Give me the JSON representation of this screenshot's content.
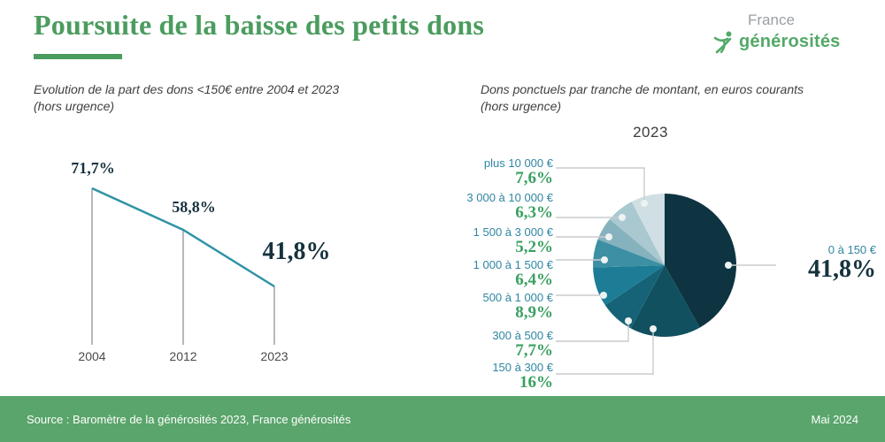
{
  "header": {
    "title": "Poursuite de la baisse des petits dons",
    "logo": {
      "line1": "France",
      "line2": "générosités"
    }
  },
  "left_chart": {
    "subtitle_line1": "Evolution de la part des dons <150€ entre 2004 et 2023",
    "subtitle_line2": "(hors urgence)"
  },
  "right_chart": {
    "subtitle_line1": "Dons ponctuels par tranche de montant, en euros courants",
    "subtitle_line2": "(hors urgence)",
    "year_title": "2023"
  },
  "footer": {
    "source": "Source : Baromètre de la générosités 2023, France générosités",
    "date": "Mai 2024"
  },
  "colors": {
    "accent_green": "#4b9c5f",
    "footer_green": "#5aa56b",
    "logo_green": "#53a968",
    "range_teal": "#2f86a3",
    "pct_green": "#3aa061",
    "dark_navy": "#16323e",
    "line_teal": "#2e93a6",
    "leader_gray": "#c9ccce"
  },
  "chart_data": [
    {
      "type": "line",
      "title": "Evolution de la part des dons <150€ entre 2004 et 2023 (hors urgence)",
      "x": [
        "2004",
        "2012",
        "2023"
      ],
      "values": [
        71.7,
        58.8,
        41.8
      ],
      "point_labels": [
        "71,7%",
        "58,8%",
        "41,8%"
      ],
      "ylim": [
        0,
        100
      ],
      "line_color": "#2e93a6",
      "dropline_color": "#717171",
      "grid": false,
      "legend": "none"
    },
    {
      "type": "pie",
      "title": "Dons ponctuels par tranche de montant, en euros courants (hors urgence)",
      "year": "2023",
      "start_angle_deg": 0,
      "direction": "clockwise",
      "slices": [
        {
          "label": "0 à 150 €",
          "pct_label": "41,8%",
          "value": 41.8,
          "color": "#0d3440"
        },
        {
          "label": "150 à 300 €",
          "pct_label": "16%",
          "value": 16.0,
          "color": "#11505f"
        },
        {
          "label": "300 à 500 €",
          "pct_label": "7,7%",
          "value": 7.7,
          "color": "#166377"
        },
        {
          "label": "500 à 1 000 €",
          "pct_label": "8,9%",
          "value": 8.9,
          "color": "#1d7d96"
        },
        {
          "label": "1 000 à 1 500 €",
          "pct_label": "6,4%",
          "value": 6.4,
          "color": "#3d8fa3"
        },
        {
          "label": "1 500 à 3 000 €",
          "pct_label": "5,2%",
          "value": 5.2,
          "color": "#85b2bd"
        },
        {
          "label": "3 000 à 10 000 €",
          "pct_label": "6,3%",
          "value": 6.3,
          "color": "#a9c8d0"
        },
        {
          "label": "plus 10 000 €",
          "pct_label": "7,6%",
          "value": 7.6,
          "color": "#d0dfe4"
        }
      ]
    }
  ]
}
